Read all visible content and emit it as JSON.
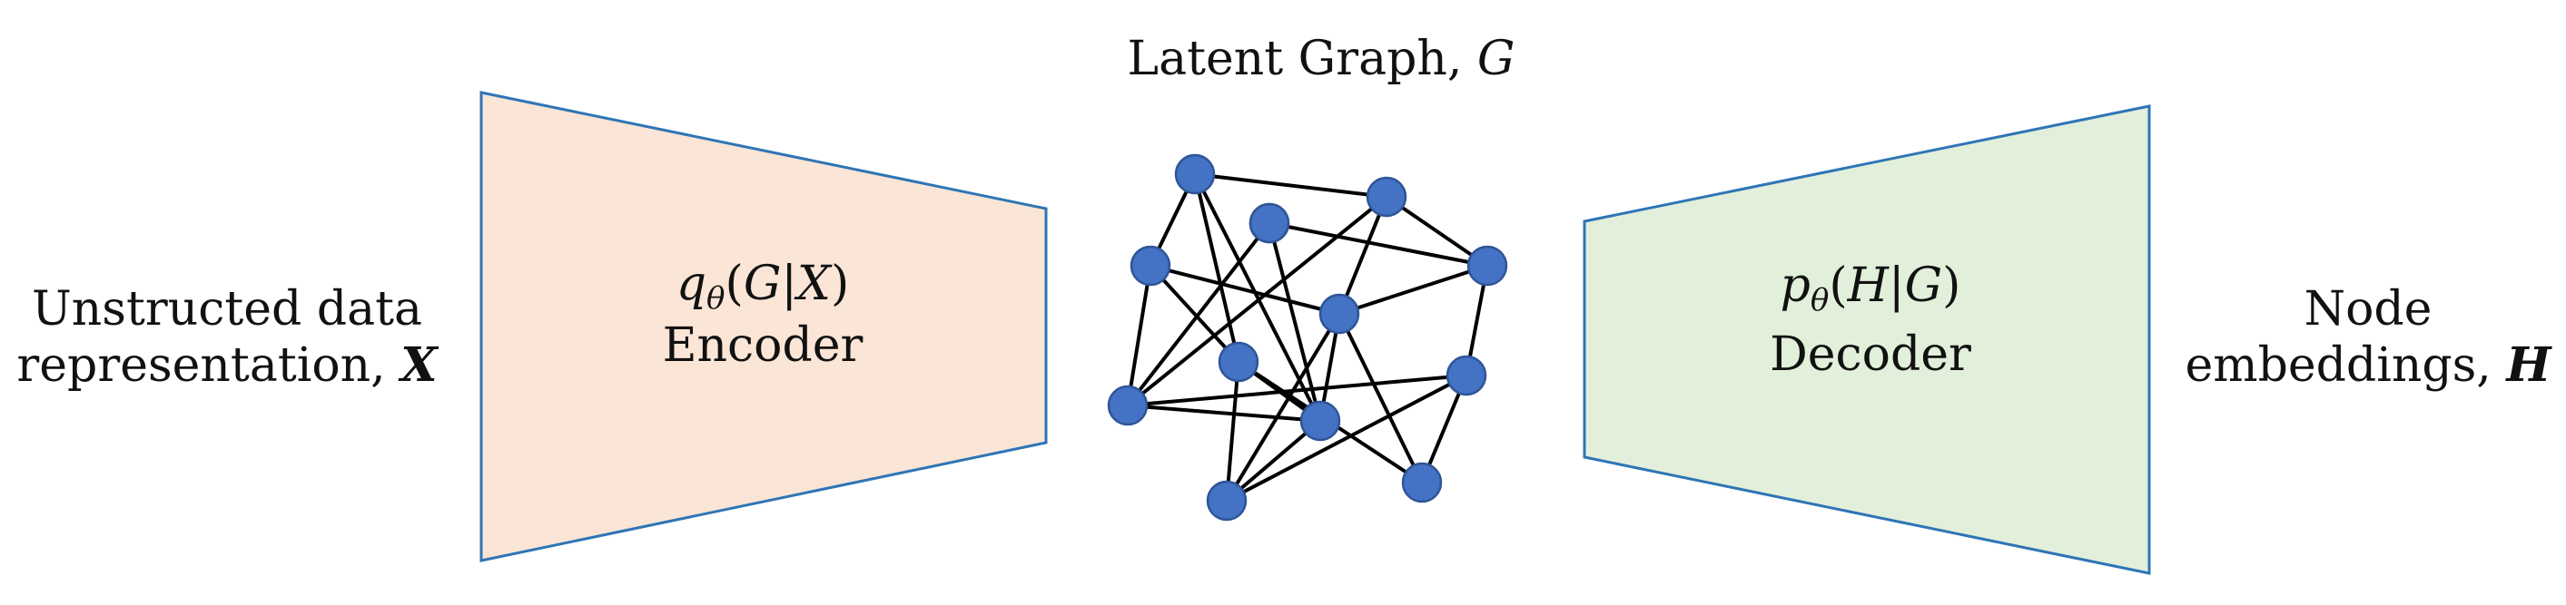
{
  "title": {
    "text": "Latent Graph, ",
    "symbol": "G"
  },
  "input": {
    "line1": "Unstructed data",
    "line2": "representation, ",
    "symbol": "X"
  },
  "output": {
    "line1": "Node",
    "line2": "embeddings, ",
    "symbol": "H"
  },
  "encoder": {
    "formula": {
      "fn": "q",
      "sub": "θ",
      "open": "(",
      "a": "G",
      "bar": "|",
      "b": "X",
      "close": ")"
    },
    "label": "Encoder",
    "fill": "#fbe5d6",
    "stroke": "#2e75b6"
  },
  "decoder": {
    "formula": {
      "fn": "p",
      "sub": "θ",
      "open": "(",
      "a": "H",
      "bar": "|",
      "b": "G",
      "close": ")"
    },
    "label": "Decoder",
    "fill": "#e2efda",
    "stroke": "#2e75b6"
  },
  "graph": {
    "node_fill": "#4472c4",
    "node_stroke": "#2f5597",
    "edge_color": "#000000",
    "node_count": 13,
    "edge_count": 26
  }
}
